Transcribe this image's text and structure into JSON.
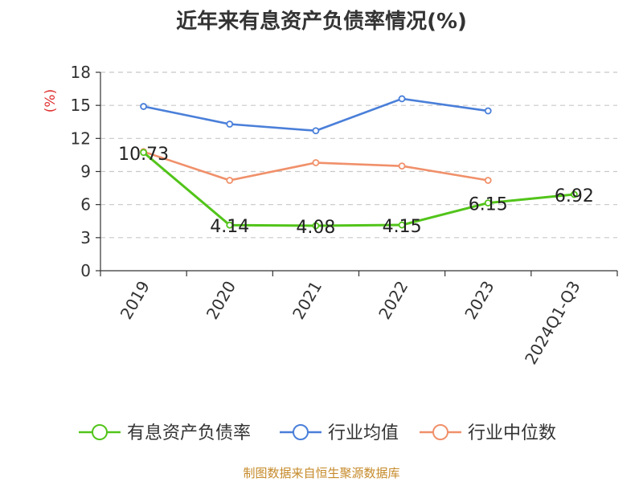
{
  "chart_data": {
    "type": "line",
    "title": "近年来有息资产负债率情况(%)",
    "ylabel": "(%)",
    "xlabel": "",
    "categories": [
      "2019",
      "2020",
      "2021",
      "2022",
      "2023",
      "2024Q1-Q3"
    ],
    "ylim": [
      0,
      18
    ],
    "yticks": [
      "0",
      "3",
      "6",
      "9",
      "12",
      "15",
      "18"
    ],
    "grid": true,
    "legend": "bottom",
    "series": [
      {
        "name": "有息资产负债率",
        "color": "#52c41a",
        "values": [
          10.73,
          4.14,
          4.08,
          4.15,
          6.15,
          6.92
        ],
        "labels": [
          "10.73",
          "4.14",
          "4.08",
          "4.15",
          "6.15",
          "6.92"
        ]
      },
      {
        "name": "行业均值",
        "color": "#4a7fd9",
        "values": [
          14.9,
          13.3,
          12.7,
          15.6,
          14.5,
          null
        ]
      },
      {
        "name": "行业中位数",
        "color": "#f0906a",
        "values": [
          10.8,
          8.2,
          9.8,
          9.5,
          8.2,
          null
        ]
      }
    ]
  },
  "source": "制图数据来自恒生聚源数据库"
}
